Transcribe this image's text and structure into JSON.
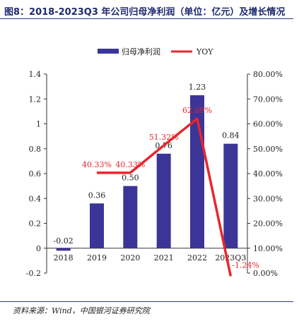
{
  "figure": {
    "title": "图8：2018-2023Q3 年公司归母净利润（单位：亿元）及增长情况",
    "source": "资料来源：Wind，中国银河证券研究院"
  },
  "chart_data": {
    "type": "bar",
    "categories": [
      "2018",
      "2019",
      "2020",
      "2021",
      "2022",
      "2023Q3"
    ],
    "series": [
      {
        "name": "归母净利润",
        "type": "bar",
        "axis": "left",
        "color": "#3b3598",
        "values": [
          -0.02,
          0.36,
          0.5,
          0.76,
          1.23,
          0.84
        ],
        "labels": [
          "-0.02",
          "0.36",
          "0.50",
          "0.76",
          "1.23",
          "0.84"
        ]
      },
      {
        "name": "YOY",
        "type": "line",
        "axis": "right",
        "color": "#e8262d",
        "x": [
          "2019",
          "2020",
          "2021",
          "2022",
          "2023Q3"
        ],
        "values": [
          40.33,
          40.33,
          51.32,
          62.09,
          -1.24
        ],
        "labels": [
          "40.33%",
          "40.33%",
          "51.32%",
          "62.09%",
          "-1.24%"
        ]
      }
    ],
    "y_left": {
      "range": [
        -0.2,
        1.4
      ],
      "ticks": [
        -0.2,
        0,
        0.2,
        0.4,
        0.6,
        0.8,
        1,
        1.2,
        1.4
      ],
      "tick_labels": [
        "-0.2",
        "0",
        "0.2",
        "0.4",
        "0.6",
        "0.8",
        "1",
        "1.2",
        "1.4"
      ]
    },
    "y_right": {
      "range": [
        0,
        80
      ],
      "ticks": [
        0,
        10,
        20,
        30,
        40,
        50,
        60,
        70,
        80
      ],
      "tick_labels": [
        "0.00%",
        "10.00%",
        "20.00%",
        "30.00%",
        "40.00%",
        "50.00%",
        "60.00%",
        "70.00%",
        "80.00%"
      ]
    },
    "legend": {
      "placement": "top-center"
    },
    "grid": false
  }
}
